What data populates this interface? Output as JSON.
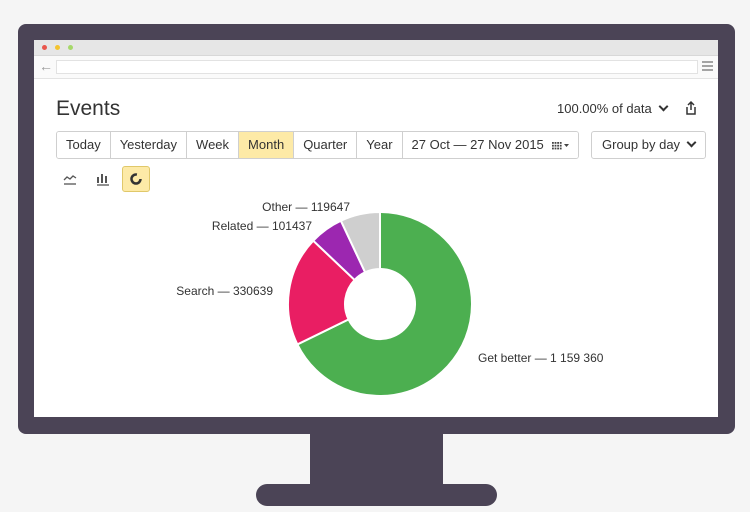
{
  "page": {
    "title": "Events"
  },
  "data_selector": {
    "label": "100.00% of data"
  },
  "periods": [
    "Today",
    "Yesterday",
    "Week",
    "Month",
    "Quarter",
    "Year"
  ],
  "active_period": "Month",
  "date_range": "27 Oct — 27 Nov 2015",
  "group_by": {
    "label": "Group by day"
  },
  "view_modes": [
    "line-chart-icon",
    "bar-chart-icon",
    "pie-chart-icon"
  ],
  "active_view": "pie-chart-icon",
  "colors": {
    "active_bg": "#fdeaa7",
    "frame": "#4b4456",
    "dot_red": "#e9564c",
    "dot_yellow": "#f4c430",
    "dot_green": "#a6d86a"
  },
  "chart_data": {
    "type": "pie",
    "donut": true,
    "slices": [
      {
        "label": "Get better — 1 159 360",
        "value": 1159360,
        "color": "#4caf50"
      },
      {
        "label": "Search — 330639",
        "value": 330639,
        "color": "#e91e63"
      },
      {
        "label": "Related — 101437",
        "value": 101437,
        "color": "#9c27b0"
      },
      {
        "label": "Other — 119647",
        "value": 119647,
        "color": "#cfcfcf"
      }
    ]
  }
}
